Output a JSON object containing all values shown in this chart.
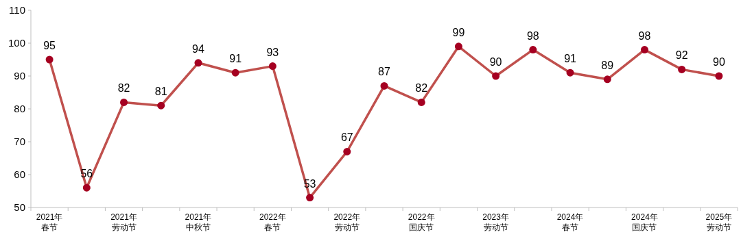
{
  "chart_data": {
    "type": "line",
    "categories": [
      "2021年春节",
      null,
      "2021年劳动节",
      null,
      "2021年中秋节",
      null,
      "2022年春节",
      null,
      "2022年劳动节",
      null,
      "2022年国庆节",
      null,
      "2023年劳动节",
      null,
      "2024年春节",
      null,
      "2024年国庆节",
      null,
      "2025年劳动节"
    ],
    "series": [
      {
        "color": "#c0504d",
        "values": [
          95,
          56,
          82,
          81,
          94,
          91,
          93,
          53,
          67,
          87,
          82,
          99,
          90,
          98,
          91,
          89,
          98,
          92,
          90
        ]
      }
    ],
    "ylim": [
      50,
      110
    ],
    "yticks": [
      50,
      60,
      70,
      80,
      90,
      100,
      110
    ],
    "data_labels": true,
    "marker": "circle",
    "line_style": "solid",
    "grid": false
  }
}
